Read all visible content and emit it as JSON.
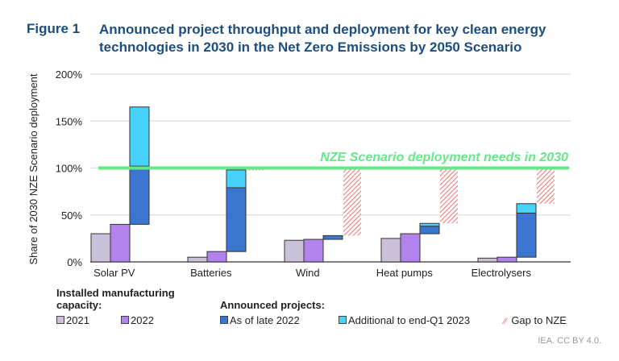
{
  "figure_label": "Figure 1",
  "title": "Announced project throughput and deployment for key clean energy technologies in 2030 in the Net Zero Emissions by 2050 Scenario",
  "credit": "IEA. CC BY 4.0.",
  "chart_data": {
    "type": "bar",
    "stacked_projects": true,
    "ylabel": "Share of 2030 NZE Scenario deployment",
    "ylim": [
      0,
      200
    ],
    "yticks": [
      "0%",
      "50%",
      "100%",
      "150%",
      "200%"
    ],
    "grid": true,
    "categories": [
      "Solar PV",
      "Batteries",
      "Wind",
      "Heat pumps",
      "Electrolysers"
    ],
    "series": [
      {
        "name": "2021",
        "group": "Installed manufacturing capacity:",
        "values": [
          30,
          5,
          23,
          25,
          4
        ],
        "color": "#cbc0da"
      },
      {
        "name": "2022",
        "group": "Installed manufacturing capacity:",
        "values": [
          40,
          11,
          24,
          30,
          5
        ],
        "color": "#b283ec"
      },
      {
        "name": "As of late 2022",
        "group": "Announced projects:",
        "base": [
          40,
          11,
          24,
          30,
          5
        ],
        "top": [
          102,
          79,
          28,
          38,
          52
        ],
        "color": "#3a76cf"
      },
      {
        "name": "Additional to end-Q1 2023",
        "group": "Announced projects:",
        "base": [
          102,
          79,
          28,
          38,
          52
        ],
        "top": [
          165,
          98,
          28,
          41,
          62
        ],
        "color": "#48d3fd"
      },
      {
        "name": "Gap to NZE",
        "base": [
          null,
          98,
          28,
          41,
          62
        ],
        "top": [
          null,
          100,
          100,
          100,
          100
        ],
        "color": "#f07070"
      }
    ],
    "reference_line": {
      "value": 100,
      "label": "NZE Scenario deployment needs in 2030",
      "color": "#66e88a"
    },
    "legend_headers": [
      "Installed manufacturing capacity:",
      "Announced projects:"
    ]
  }
}
